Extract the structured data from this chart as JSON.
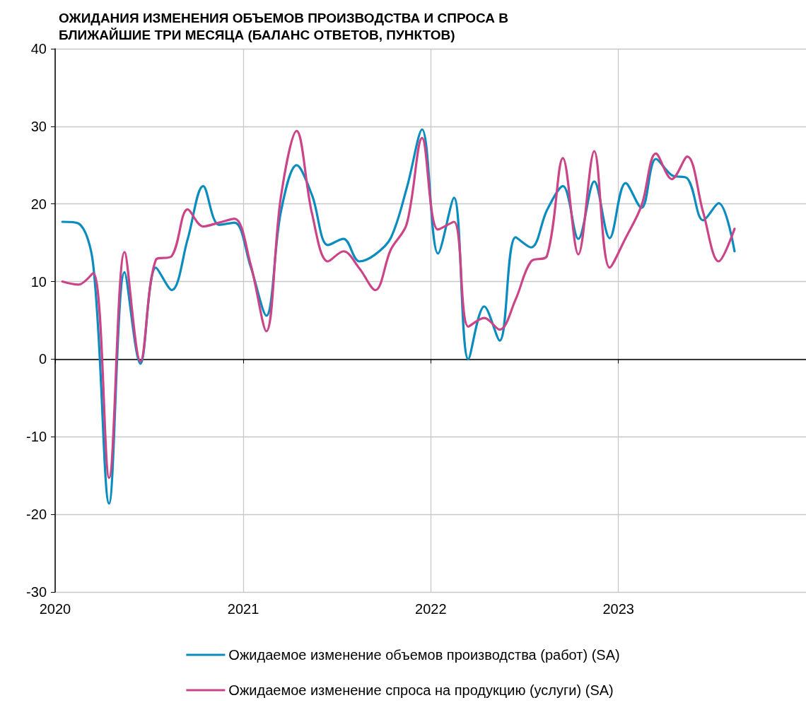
{
  "chart_data": {
    "type": "line",
    "title": "ОЖИДАНИЯ ИЗМЕНЕНИЯ ОБЪЕМОВ ПРОИЗВОДСТВА И СПРОСА В БЛИЖАЙШИЕ ТРИ МЕСЯЦА (БАЛАНС ОТВЕТОВ, ПУНКТОВ)",
    "x": [
      "2020-01-15",
      "2020-02-15",
      "2020-03-15",
      "2020-04-15",
      "2020-05-15",
      "2020-06-15",
      "2020-07-15",
      "2020-08-15",
      "2020-09-15",
      "2020-10-15",
      "2020-11-15",
      "2020-12-15",
      "2021-01-15",
      "2021-02-15",
      "2021-03-15",
      "2021-04-15",
      "2021-05-15",
      "2021-06-15",
      "2021-07-15",
      "2021-08-15",
      "2021-09-15",
      "2021-10-15",
      "2021-11-15",
      "2021-12-15",
      "2022-01-15",
      "2022-02-15",
      "2022-03-15",
      "2022-04-15",
      "2022-05-15",
      "2022-06-15",
      "2022-07-15",
      "2022-08-15",
      "2022-09-15",
      "2022-10-15",
      "2022-11-15",
      "2022-12-15",
      "2023-01-15",
      "2023-02-15",
      "2023-03-15",
      "2023-04-15",
      "2023-05-15",
      "2023-06-15",
      "2023-07-15",
      "2023-08-15"
    ],
    "series": [
      {
        "name": "Ожидаемое изменение объемов производства (работ) (SA)",
        "color": "#0a8cbf",
        "values": [
          17.7,
          17.5,
          12.2,
          -18.6,
          11.2,
          -0.6,
          11.8,
          8.9,
          15.5,
          22.3,
          17.3,
          17.6,
          12,
          5.6,
          18.9,
          25,
          21.1,
          14.7,
          15.5,
          12.6,
          13.5,
          15.6,
          22,
          29.6,
          13.6,
          20.8,
          0,
          6.8,
          2.4,
          15.7,
          14.4,
          19.2,
          22.3,
          15.5,
          22.9,
          15.6,
          22.7,
          19.5,
          25.8,
          23.7,
          23.3,
          17.9,
          20.1,
          13.9
        ]
      },
      {
        "name": "Ожидаемое изменение спроса на продукцию (услуги) (SA)",
        "color": "#cc4488",
        "values": [
          10,
          9.6,
          11.1,
          -15.3,
          13.8,
          -0.3,
          12.8,
          13.3,
          19.3,
          17.1,
          17.6,
          18.1,
          12.3,
          3.6,
          20.8,
          29.4,
          18.7,
          12.6,
          13.9,
          11.7,
          8.9,
          14.1,
          17.4,
          28.5,
          16.7,
          17.7,
          4.2,
          5.3,
          3.8,
          7.7,
          12.6,
          13.3,
          25.9,
          13.5,
          26.8,
          11.8,
          15.6,
          19.8,
          26.5,
          23.2,
          26.1,
          18.9,
          12.6,
          16.8
        ]
      }
    ],
    "xlim": [
      "2020-01-01",
      "2024-01-01"
    ],
    "xticks": [
      {
        "value": "2020-01-01",
        "label": "2020"
      },
      {
        "value": "2021-01-01",
        "label": "2021"
      },
      {
        "value": "2022-01-01",
        "label": "2022"
      },
      {
        "value": "2023-01-01",
        "label": "2023"
      }
    ],
    "ylim": [
      -30,
      40
    ],
    "yticks": [
      -30,
      -20,
      -10,
      0,
      10,
      20,
      30,
      40
    ],
    "grid": true,
    "legend": "bottom"
  }
}
